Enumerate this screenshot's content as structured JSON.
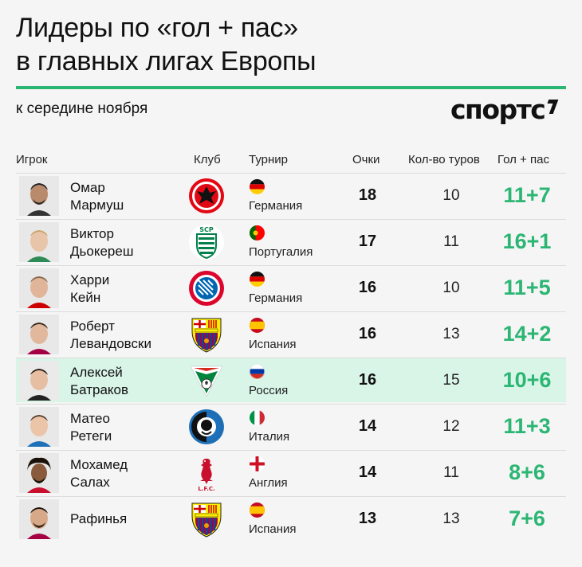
{
  "header": {
    "title_line1": "Лидеры по «гол + пас»",
    "title_line2": "в главных лигах Европы",
    "subtitle": "к середине ноября",
    "logo": "спортс"
  },
  "colors": {
    "accent": "#2bb673",
    "highlight": "#d9f5e8"
  },
  "table": {
    "columns": {
      "player": "Игрок",
      "club": "Клуб",
      "tournament": "Турнир",
      "points": "Очки",
      "rounds": "Кол-во туров",
      "goals_assists": "Гол + пас"
    },
    "rows": [
      {
        "first": "Омар",
        "last": "Мармуш",
        "club_icon": "eintracht-frankfurt-crest-icon",
        "flag_icon": "germany-flag-icon",
        "country": "Германия",
        "points": "18",
        "rounds": "10",
        "ga": "11+7"
      },
      {
        "first": "Виктор",
        "last": "Дьокереш",
        "club_icon": "sporting-crest-icon",
        "flag_icon": "portugal-flag-icon",
        "country": "Португалия",
        "points": "17",
        "rounds": "11",
        "ga": "16+1"
      },
      {
        "first": "Харри",
        "last": "Кейн",
        "club_icon": "bayern-crest-icon",
        "flag_icon": "germany-flag-icon",
        "country": "Германия",
        "points": "16",
        "rounds": "10",
        "ga": "11+5"
      },
      {
        "first": "Роберт",
        "last": "Левандовски",
        "club_icon": "barcelona-crest-icon",
        "flag_icon": "spain-flag-icon",
        "country": "Испания",
        "points": "16",
        "rounds": "13",
        "ga": "14+2"
      },
      {
        "first": "Алексей",
        "last": "Батраков",
        "club_icon": "lokomotiv-crest-icon",
        "flag_icon": "russia-flag-icon",
        "country": "Россия",
        "points": "16",
        "rounds": "15",
        "ga": "10+6",
        "highlight": true
      },
      {
        "first": "Матео",
        "last": "Ретеги",
        "club_icon": "atalanta-crest-icon",
        "flag_icon": "italy-flag-icon",
        "country": "Италия",
        "points": "14",
        "rounds": "12",
        "ga": "11+3"
      },
      {
        "first": "Мохамед",
        "last": "Салах",
        "club_icon": "liverpool-crest-icon",
        "flag_icon": "england-flag-icon",
        "country": "Англия",
        "points": "14",
        "rounds": "11",
        "ga": "8+6"
      },
      {
        "first": "Рафинья",
        "last": "",
        "club_icon": "barcelona-crest-icon",
        "flag_icon": "spain-flag-icon",
        "country": "Испания",
        "points": "13",
        "rounds": "13",
        "ga": "7+6"
      }
    ]
  }
}
